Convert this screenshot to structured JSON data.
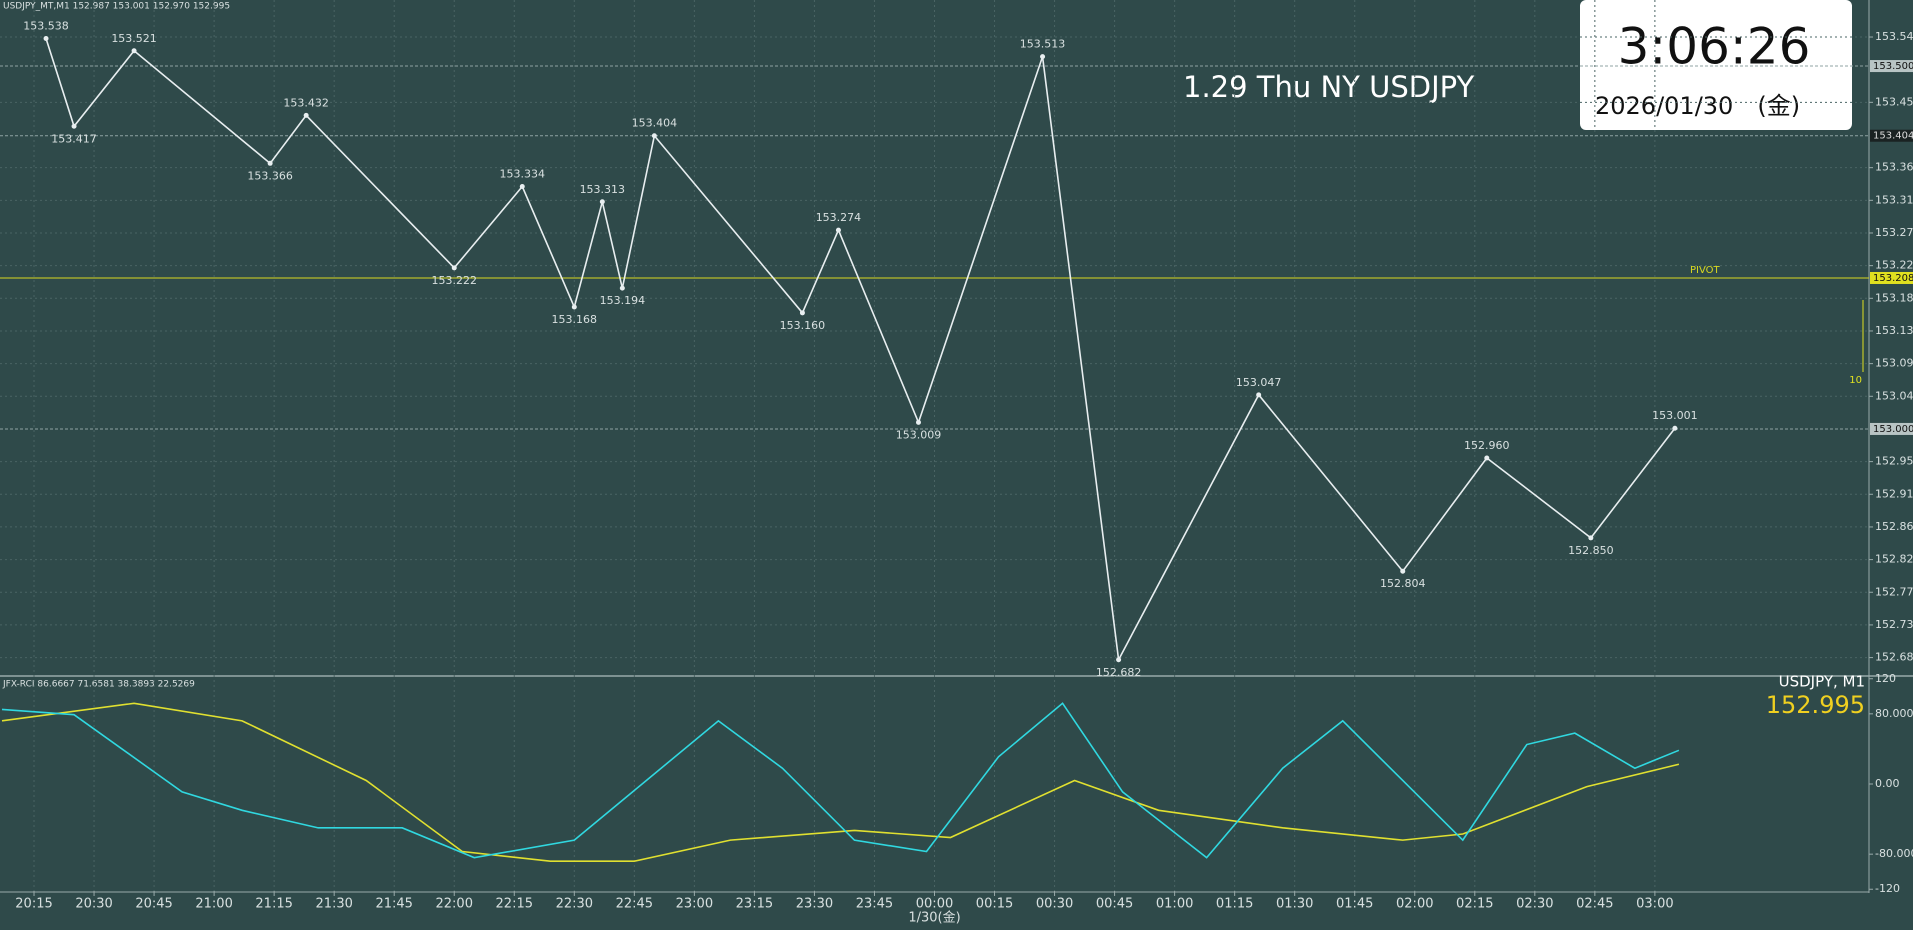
{
  "chart_data": [
    {
      "type": "line",
      "title": "1.29 Thu NY USDJPY",
      "subtitle": "USDJPY_MT,M1  152.987 153.001 152.970 152.995",
      "color": "#e8eef0",
      "x": [
        1218,
        1225,
        1240,
        1274,
        1283,
        1320,
        1337,
        1350,
        1357,
        1362,
        1370,
        1407,
        1416,
        1436,
        1467,
        1486,
        1521,
        1557,
        1578,
        1604,
        1625
      ],
      "values": [
        153.538,
        153.417,
        153.521,
        153.366,
        153.432,
        153.222,
        153.334,
        153.168,
        153.313,
        153.194,
        153.404,
        153.16,
        153.274,
        153.009,
        153.513,
        152.682,
        153.047,
        152.804,
        152.96,
        152.85,
        153.001
      ],
      "value_labels": [
        "153.538",
        "153.417",
        "153.521",
        "153.366",
        "153.432",
        "153.222",
        "153.334",
        "153.168",
        "153.313",
        "153.194",
        "153.404",
        "153.160",
        "153.274",
        "153.009",
        "153.513",
        "152.682",
        "153.047",
        "152.804",
        "152.960",
        "152.850",
        "153.001"
      ],
      "xlim": [
        1206.5,
        1673.5
      ],
      "xticks": [
        {
          "value": 1215,
          "label": "20:15"
        },
        {
          "value": 1230,
          "label": "20:30"
        },
        {
          "value": 1245,
          "label": "20:45"
        },
        {
          "value": 1260,
          "label": "21:00"
        },
        {
          "value": 1275,
          "label": "21:15"
        },
        {
          "value": 1290,
          "label": "21:30"
        },
        {
          "value": 1305,
          "label": "21:45"
        },
        {
          "value": 1320,
          "label": "22:00"
        },
        {
          "value": 1335,
          "label": "22:15"
        },
        {
          "value": 1350,
          "label": "22:30"
        },
        {
          "value": 1365,
          "label": "22:45"
        },
        {
          "value": 1380,
          "label": "23:00"
        },
        {
          "value": 1395,
          "label": "23:15"
        },
        {
          "value": 1410,
          "label": "23:30"
        },
        {
          "value": 1425,
          "label": "23:45"
        },
        {
          "value": 1440,
          "label": "00:00"
        },
        {
          "value": 1455,
          "label": "00:15"
        },
        {
          "value": 1470,
          "label": "00:30"
        },
        {
          "value": 1485,
          "label": "00:45"
        },
        {
          "value": 1500,
          "label": "01:00"
        },
        {
          "value": 1515,
          "label": "01:15"
        },
        {
          "value": 1530,
          "label": "01:30"
        },
        {
          "value": 1545,
          "label": "01:45"
        },
        {
          "value": 1560,
          "label": "02:00"
        },
        {
          "value": 1575,
          "label": "02:15"
        },
        {
          "value": 1590,
          "label": "02:30"
        },
        {
          "value": 1605,
          "label": "02:45"
        },
        {
          "value": 1620,
          "label": "03:00"
        }
      ],
      "date_label": "1/30(金)",
      "ylim": [
        152.661,
        153.591
      ],
      "yticks": [
        {
          "value": 153.54,
          "label": "153.540"
        },
        {
          "value": 153.45,
          "label": "153.450"
        },
        {
          "value": 153.36,
          "label": "153.360"
        },
        153.315,
        {
          "value": 153.27,
          "label": "153.270"
        },
        153.225,
        {
          "value": 153.18,
          "label": "153.180"
        },
        153.135,
        {
          "value": 153.09,
          "label": "153.090"
        },
        153.045,
        152.955,
        {
          "value": 152.91,
          "label": "152.910"
        },
        152.865,
        {
          "value": 152.82,
          "label": "152.820"
        },
        152.775,
        {
          "value": 152.73,
          "label": "152.730"
        },
        152.685
      ],
      "price_tags": [
        {
          "value": 153.5,
          "label": "153.500"
        },
        {
          "value": 153.404,
          "label": "153.404"
        },
        {
          "value": 153.208,
          "label": "153.208"
        },
        {
          "value": 153.0,
          "label": "153.000"
        }
      ],
      "levels": [
        {
          "name": "PIVOT",
          "value": 153.208,
          "color": "#d8d820"
        }
      ],
      "grid": true,
      "clock": {
        "time": "3:06:26",
        "date": "2026/01/30　(金)"
      },
      "scale_marker": "10"
    },
    {
      "type": "line",
      "title": "JFX-RCI 86.6667 71.6581 38.3893 22.5269",
      "symbol_label": "USDJPY, M1",
      "last_price": 152.995,
      "xlim": [
        1206.5,
        1673.5
      ],
      "ylim": [
        -122,
        122
      ],
      "yticks": [
        120,
        {
          "value": 80,
          "label": "80.0000"
        },
        {
          "value": 0,
          "label": "0.00"
        },
        {
          "value": -80,
          "label": "-80.0000"
        },
        -120
      ],
      "series": [
        {
          "color": "#e0e030",
          "x": [
            1207,
            1240,
            1267,
            1298,
            1322,
            1344,
            1365,
            1389,
            1420,
            1444,
            1475,
            1496,
            1527,
            1557,
            1572,
            1603,
            1626
          ],
          "values": [
            72,
            92,
            72,
            4,
            -77,
            -88,
            -88,
            -64,
            -53,
            -61,
            4,
            -30,
            -50,
            -64,
            -57,
            -3,
            22.5
          ]
        },
        {
          "color": "#30d8e0",
          "x": [
            1207,
            1225,
            1252,
            1267,
            1286,
            1307,
            1325,
            1350,
            1368,
            1386,
            1402,
            1420,
            1438,
            1456,
            1472,
            1487,
            1508,
            1527,
            1542,
            1557,
            1572,
            1588,
            1600,
            1615,
            1626
          ],
          "values": [
            85,
            79,
            -9,
            -30,
            -50,
            -50,
            -84,
            -64,
            4,
            72,
            18,
            -64,
            -77,
            31,
            92,
            -9,
            -84,
            18,
            72,
            4,
            -64,
            45,
            58,
            18,
            38.4
          ]
        }
      ]
    }
  ]
}
